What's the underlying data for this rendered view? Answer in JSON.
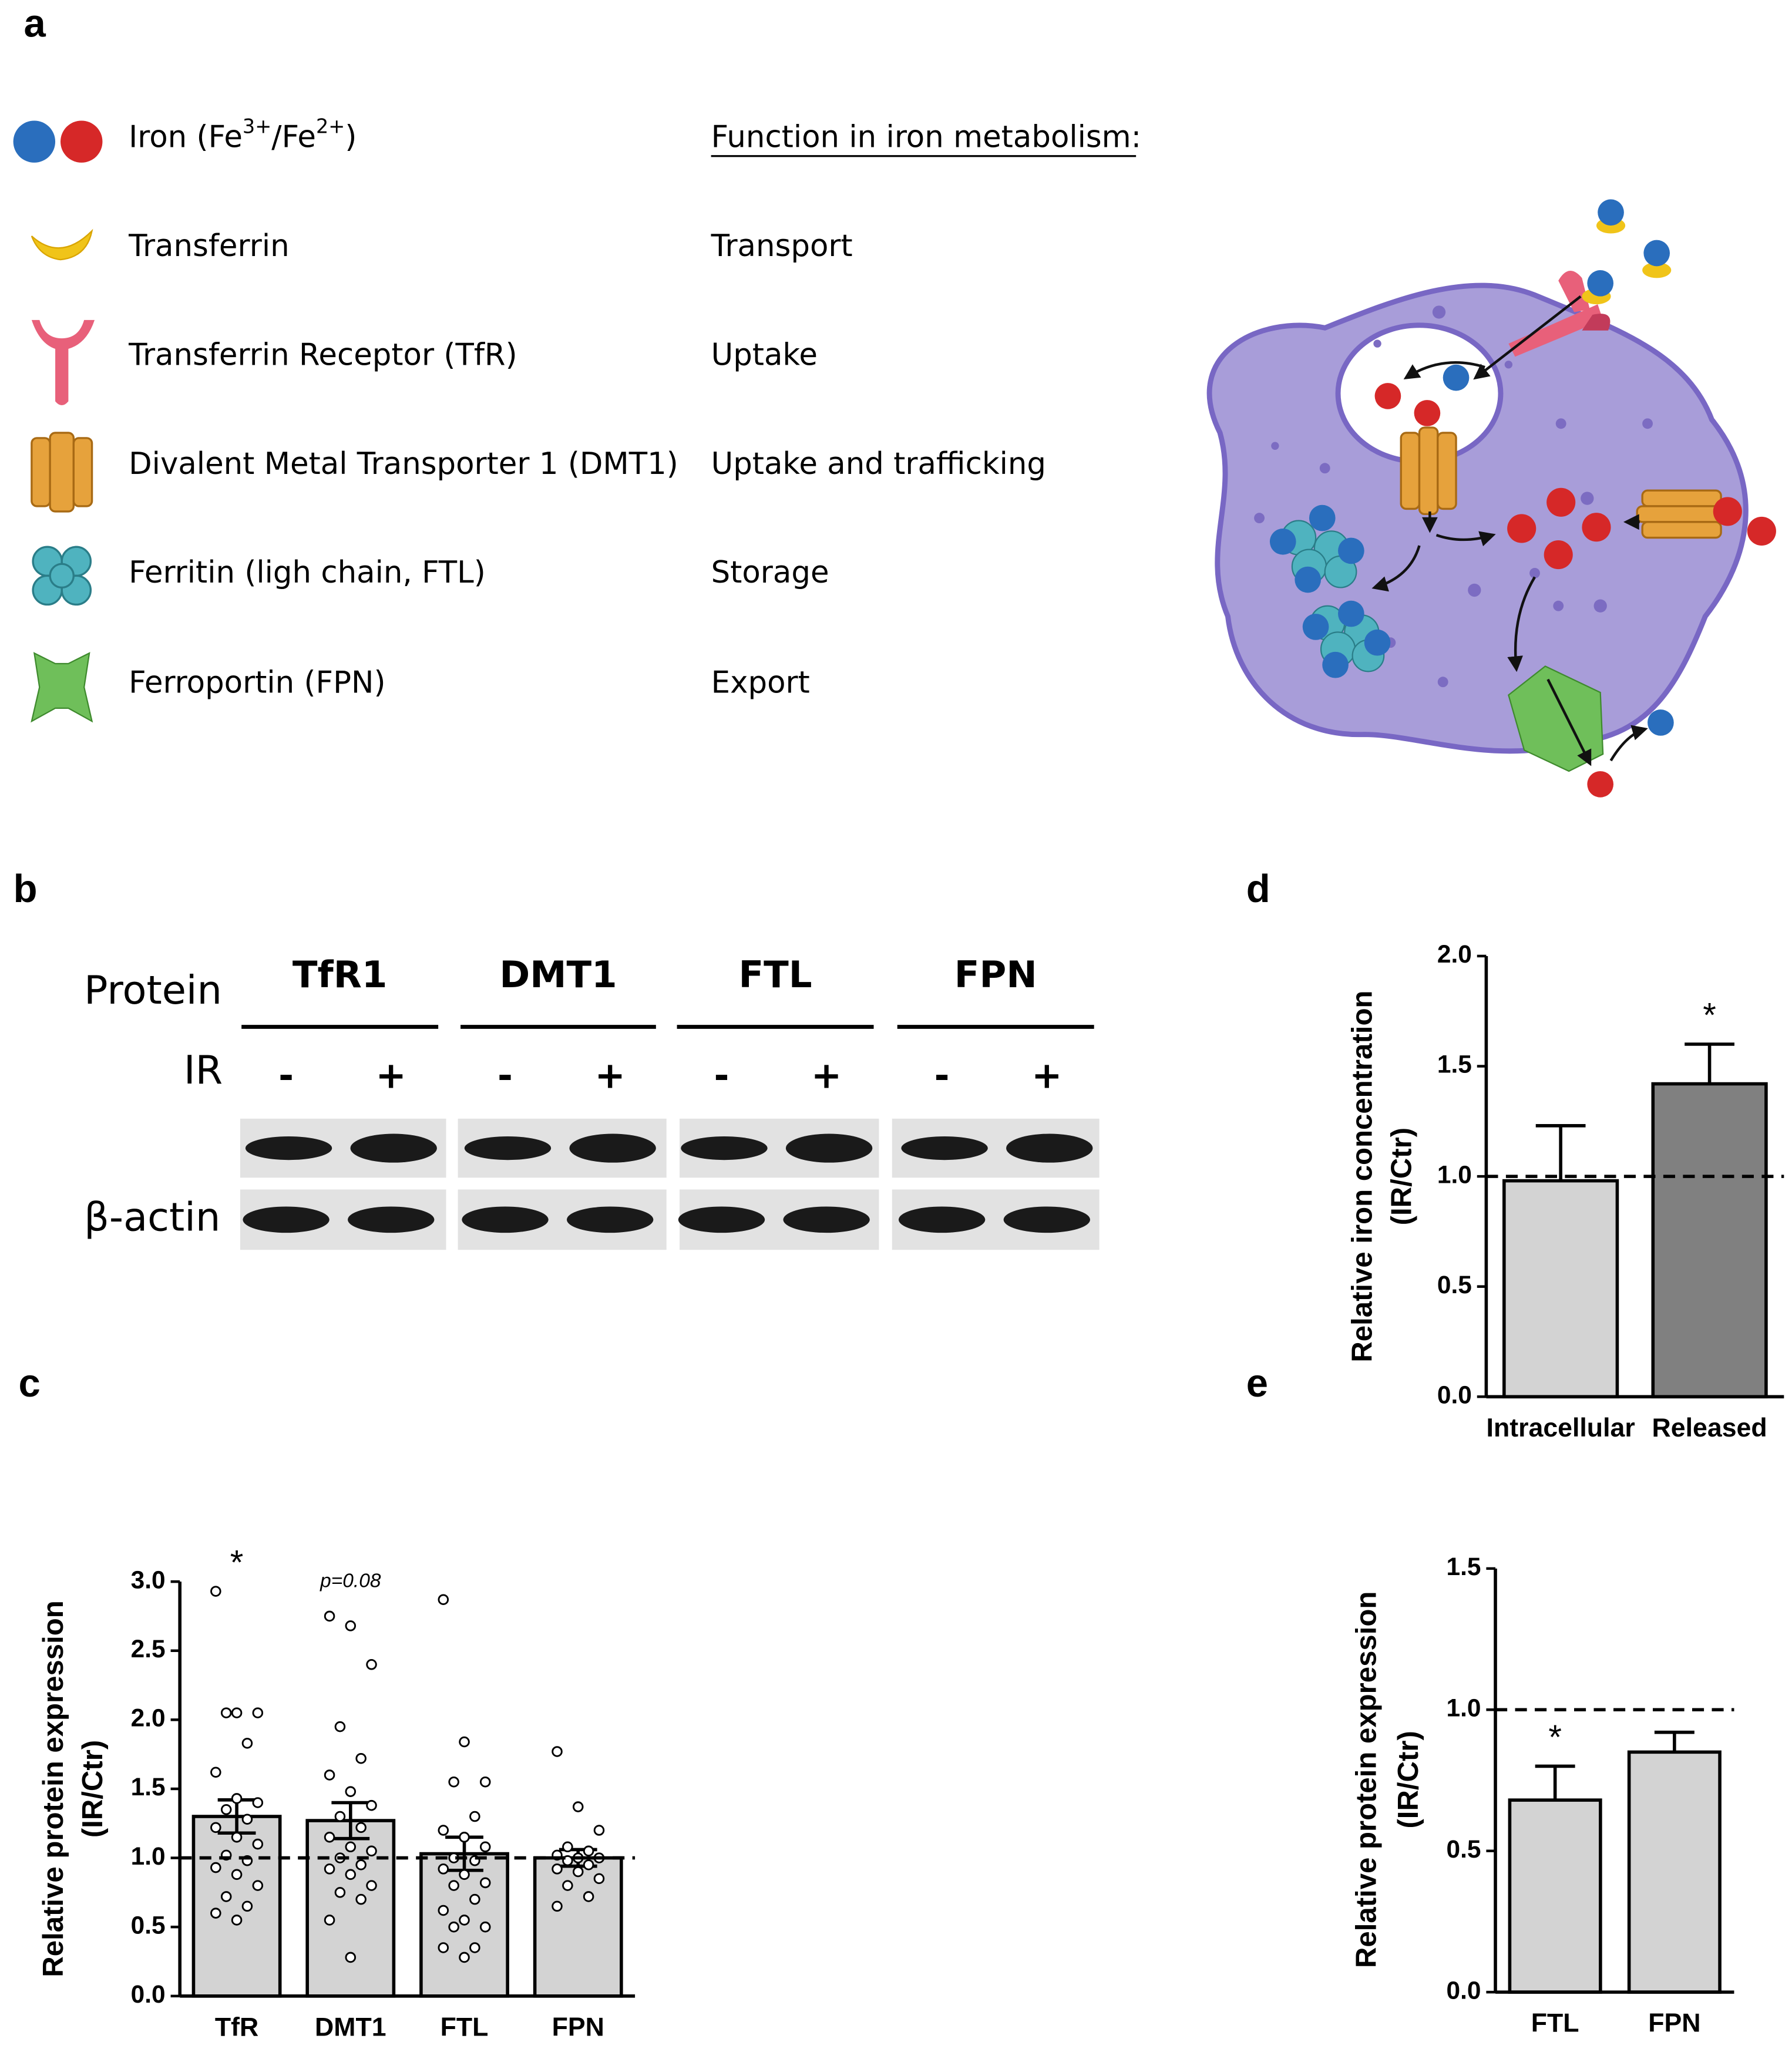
{
  "panels": [
    "a",
    "b",
    "c",
    "d",
    "e"
  ],
  "legend": {
    "iron_label": [
      "Iron (Fe",
      "3+",
      "/Fe",
      "2+",
      ")"
    ],
    "function_header": "Function in iron metabolism:",
    "items": [
      {
        "name": "Transferrin",
        "function": "Transport"
      },
      {
        "name": "Transferrin Receptor (TfR)",
        "function": "Uptake"
      },
      {
        "name": "Divalent Metal Transporter 1 (DMT1)",
        "function": "Uptake and trafficking"
      },
      {
        "name": "Ferritin (ligh chain, FTL)",
        "function": "Storage"
      },
      {
        "name": "Ferroportin (FPN)",
        "function": "Export"
      }
    ]
  },
  "blot": {
    "protein_label": "Protein",
    "condition_label": "IR",
    "proteins": [
      "TfR1",
      "DMT1",
      "FTL",
      "FPN"
    ],
    "conditions": [
      "-",
      "+"
    ],
    "loading_control": "β-actin"
  },
  "chart_data": [
    {
      "type": "bar",
      "ylabel": [
        "Relative protein expression",
        "(IR/Ctr)"
      ],
      "categories": [
        "TfR",
        "DMT1",
        "FTL",
        "FPN"
      ],
      "values": [
        1.3,
        1.27,
        1.03,
        1.0
      ],
      "errors": [
        0.12,
        0.13,
        0.12,
        0.06
      ],
      "error_direction": "both",
      "points": [
        [
          2.93,
          2.05,
          2.05,
          2.05,
          1.83,
          1.62,
          1.43,
          1.4,
          1.35,
          1.28,
          1.22,
          1.15,
          1.1,
          1.02,
          0.98,
          0.93,
          0.88,
          0.8,
          0.72,
          0.65,
          0.6,
          0.55
        ],
        [
          2.75,
          2.68,
          2.4,
          1.95,
          1.72,
          1.6,
          1.48,
          1.38,
          1.3,
          1.22,
          1.15,
          1.08,
          1.05,
          1.0,
          0.95,
          0.92,
          0.88,
          0.8,
          0.75,
          0.7,
          0.55,
          0.28
        ],
        [
          2.87,
          1.84,
          1.55,
          1.55,
          1.3,
          1.2,
          1.15,
          1.08,
          1.0,
          0.98,
          0.92,
          0.88,
          0.82,
          0.8,
          0.7,
          0.62,
          0.55,
          0.5,
          0.5,
          0.35,
          0.35,
          0.28
        ],
        [
          1.77,
          1.37,
          1.2,
          1.08,
          1.05,
          1.02,
          1.0,
          1.0,
          0.98,
          0.95,
          0.92,
          0.9,
          0.85,
          0.8,
          0.72,
          0.65
        ]
      ],
      "significance": [
        "*",
        "p=0.08",
        null,
        null
      ],
      "color": "#d3d3d3",
      "reference_line": 1,
      "ylim": [
        0,
        3
      ],
      "yticks": [
        {
          "value": 0,
          "label": "0.0"
        },
        0.5,
        {
          "value": 1,
          "label": "1.0"
        },
        1.5,
        {
          "value": 2,
          "label": "2.0"
        },
        2.5,
        {
          "value": 3,
          "label": "3.0"
        }
      ]
    },
    {
      "type": "bar",
      "ylabel": [
        "Relative iron concentration",
        "(IR/Ctr)"
      ],
      "categories": [
        "Intracellular",
        "Released"
      ],
      "values": [
        0.98,
        1.42
      ],
      "errors": [
        0.25,
        0.18
      ],
      "error_direction": "up",
      "significance": [
        null,
        "*"
      ],
      "colors": [
        "#d3d3d3",
        "#808080"
      ],
      "reference_line": 1,
      "ylim": [
        0,
        2
      ],
      "yticks": [
        {
          "value": 0,
          "label": "0.0"
        },
        0.5,
        {
          "value": 1,
          "label": "1.0"
        },
        1.5,
        {
          "value": 2,
          "label": "2.0"
        }
      ]
    },
    {
      "type": "bar",
      "ylabel": [
        "Relative protein expression",
        "(IR/Ctr)"
      ],
      "categories": [
        "FTL",
        "FPN"
      ],
      "values": [
        0.68,
        0.85
      ],
      "errors": [
        0.12,
        0.07
      ],
      "error_direction": "up",
      "significance": [
        "*",
        null
      ],
      "color": "#d3d3d3",
      "reference_line": 1,
      "ylim": [
        0,
        1.5
      ],
      "yticks": [
        {
          "value": 0,
          "label": "0.0"
        },
        0.5,
        {
          "value": 1,
          "label": "1.0"
        },
        1.5
      ]
    }
  ]
}
